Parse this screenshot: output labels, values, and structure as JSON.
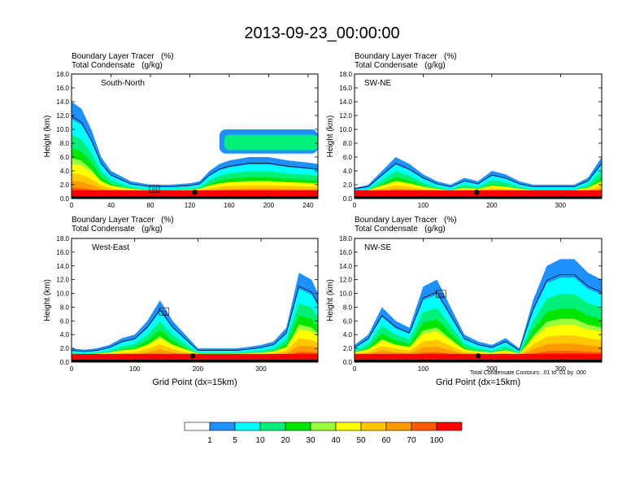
{
  "title": "2013-09-23_00:00:00",
  "panel_header": {
    "line1": "Boundary Layer Tracer   (%)",
    "line2": "Total Condensate   (g/kg)"
  },
  "xlabel": "Grid Point (dx=15km)",
  "ylabel": "Height (km)",
  "contour_note": "Total Condensate Contours: .01 to .01 by .000",
  "colorbar": {
    "labels": [
      "1",
      "5",
      "10",
      "20",
      "30",
      "40",
      "50",
      "60",
      "70",
      "100"
    ],
    "colors": [
      "#ffffff",
      "#1e90ff",
      "#00ffff",
      "#00f07a",
      "#00e600",
      "#9aff3c",
      "#ffff00",
      "#ffc800",
      "#ff9a00",
      "#ff5a00",
      "#ff0000"
    ]
  },
  "chart_data": [
    {
      "type": "heatmap",
      "name": "South-North",
      "ylabel": "Height (km)",
      "xlabel": "",
      "xlim": [
        0,
        250
      ],
      "ylim": [
        0,
        18
      ],
      "xticks": [
        0,
        40,
        80,
        120,
        160,
        200,
        240
      ],
      "yticks": [
        "0.0",
        "2.0",
        "4.0",
        "6.0",
        "8.0",
        "10.0",
        "12.0",
        "14.0",
        "16.0",
        "18.0"
      ],
      "marker_x": 125,
      "contour_labels": [
        ".01"
      ],
      "profile_x": [
        0,
        10,
        20,
        30,
        40,
        60,
        80,
        100,
        120,
        130,
        140,
        150,
        160,
        180,
        200,
        220,
        240,
        250
      ],
      "profile_top": [
        14,
        13,
        10,
        6,
        4,
        2.5,
        2,
        2,
        2.2,
        2.5,
        4,
        5,
        5.5,
        6,
        6,
        5.5,
        5.2,
        5
      ],
      "upper_layer": {
        "x0": 150,
        "x1": 250,
        "base": 6.5,
        "top": 10
      }
    },
    {
      "type": "heatmap",
      "name": "SW-NE",
      "ylabel": "Height (km)",
      "xlabel": "",
      "xlim": [
        0,
        360
      ],
      "ylim": [
        0,
        18
      ],
      "xticks": [
        0,
        100,
        200,
        300
      ],
      "yticks": [
        "0.0",
        "2.0",
        "4.0",
        "6.0",
        "8.0",
        "10.0",
        "12.0",
        "14.0",
        "16.0",
        "18.0"
      ],
      "marker_x": 178,
      "contour_labels": [],
      "profile_x": [
        0,
        20,
        40,
        60,
        80,
        100,
        120,
        140,
        160,
        180,
        200,
        220,
        240,
        260,
        280,
        300,
        320,
        340,
        360
      ],
      "profile_top": [
        1.5,
        2,
        4,
        6,
        5,
        3.5,
        2.5,
        2,
        3,
        2.5,
        4,
        3.5,
        2.5,
        2,
        2,
        2,
        2,
        3,
        6
      ],
      "upper_layer": null
    },
    {
      "type": "heatmap",
      "name": "West-East",
      "ylabel": "Height (km)",
      "xlabel": "Grid Point (dx=15km)",
      "xlim": [
        0,
        390
      ],
      "ylim": [
        0,
        18
      ],
      "xticks": [
        0,
        100,
        200,
        300
      ],
      "yticks": [
        "0.0",
        "2.0",
        "4.0",
        "6.0",
        "8.0",
        "10.0",
        "12.0",
        "14.0",
        "16.0",
        "18.0"
      ],
      "marker_x": 192,
      "contour_labels": [
        ".01"
      ],
      "profile_x": [
        0,
        20,
        40,
        60,
        80,
        100,
        120,
        140,
        160,
        180,
        200,
        220,
        240,
        260,
        280,
        300,
        320,
        340,
        360,
        380,
        390
      ],
      "profile_top": [
        2,
        1.8,
        2,
        2.5,
        3.5,
        4,
        6,
        9,
        6,
        4,
        2,
        2,
        2,
        2,
        2.2,
        2.5,
        3,
        5,
        13,
        12,
        10
      ],
      "upper_layer": null
    },
    {
      "type": "heatmap",
      "name": "NW-SE",
      "ylabel": "Height (km)",
      "xlabel": "Grid Point (dx=15km)",
      "xlim": [
        0,
        360
      ],
      "ylim": [
        0,
        18
      ],
      "xticks": [
        0,
        100,
        200,
        300
      ],
      "yticks": [
        "0.0",
        "2.0",
        "4.0",
        "6.0",
        "8.0",
        "10.0",
        "12.0",
        "14.0",
        "16.0",
        "18.0"
      ],
      "marker_x": 180,
      "contour_labels": [
        ".01"
      ],
      "profile_x": [
        0,
        20,
        40,
        60,
        80,
        100,
        120,
        140,
        160,
        180,
        200,
        220,
        240,
        260,
        280,
        300,
        320,
        340,
        360
      ],
      "profile_top": [
        2.5,
        4,
        8,
        6,
        5,
        11,
        12,
        8,
        4,
        3,
        2.5,
        3.5,
        2,
        9,
        14,
        15,
        15,
        13,
        12
      ],
      "upper_layer": null
    }
  ]
}
